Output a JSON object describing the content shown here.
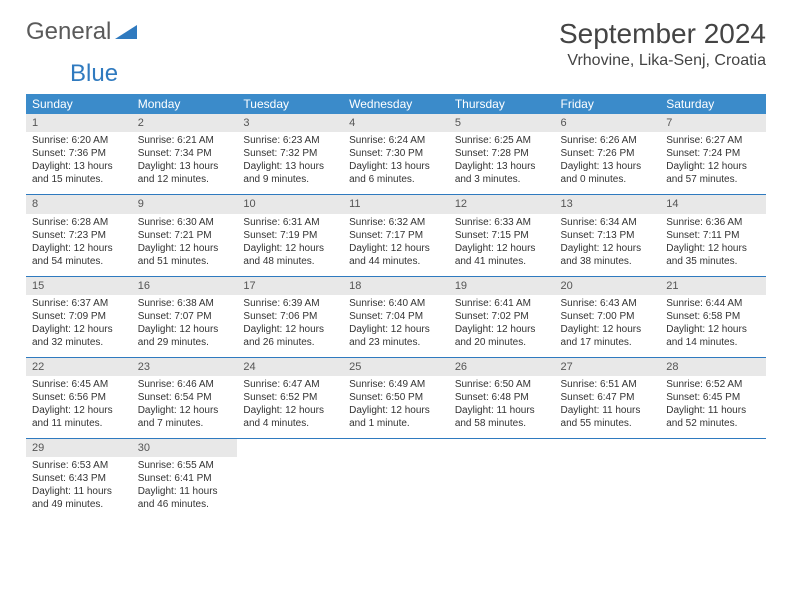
{
  "brand": {
    "part1": "General",
    "part2": "Blue"
  },
  "title": "September 2024",
  "location": "Vrhovine, Lika-Senj, Croatia",
  "colors": {
    "header_bg": "#3b8bca",
    "header_fg": "#ffffff",
    "daynum_bg": "#e8e8e8",
    "rule": "#2f7abf",
    "text": "#333333",
    "brand_gray": "#5a5a5a",
    "brand_blue": "#2f7abf"
  },
  "weekdays": [
    "Sunday",
    "Monday",
    "Tuesday",
    "Wednesday",
    "Thursday",
    "Friday",
    "Saturday"
  ],
  "weeks": [
    [
      {
        "n": "1",
        "sr": "6:20 AM",
        "ss": "7:36 PM",
        "dl": "13 hours and 15 minutes."
      },
      {
        "n": "2",
        "sr": "6:21 AM",
        "ss": "7:34 PM",
        "dl": "13 hours and 12 minutes."
      },
      {
        "n": "3",
        "sr": "6:23 AM",
        "ss": "7:32 PM",
        "dl": "13 hours and 9 minutes."
      },
      {
        "n": "4",
        "sr": "6:24 AM",
        "ss": "7:30 PM",
        "dl": "13 hours and 6 minutes."
      },
      {
        "n": "5",
        "sr": "6:25 AM",
        "ss": "7:28 PM",
        "dl": "13 hours and 3 minutes."
      },
      {
        "n": "6",
        "sr": "6:26 AM",
        "ss": "7:26 PM",
        "dl": "13 hours and 0 minutes."
      },
      {
        "n": "7",
        "sr": "6:27 AM",
        "ss": "7:24 PM",
        "dl": "12 hours and 57 minutes."
      }
    ],
    [
      {
        "n": "8",
        "sr": "6:28 AM",
        "ss": "7:23 PM",
        "dl": "12 hours and 54 minutes."
      },
      {
        "n": "9",
        "sr": "6:30 AM",
        "ss": "7:21 PM",
        "dl": "12 hours and 51 minutes."
      },
      {
        "n": "10",
        "sr": "6:31 AM",
        "ss": "7:19 PM",
        "dl": "12 hours and 48 minutes."
      },
      {
        "n": "11",
        "sr": "6:32 AM",
        "ss": "7:17 PM",
        "dl": "12 hours and 44 minutes."
      },
      {
        "n": "12",
        "sr": "6:33 AM",
        "ss": "7:15 PM",
        "dl": "12 hours and 41 minutes."
      },
      {
        "n": "13",
        "sr": "6:34 AM",
        "ss": "7:13 PM",
        "dl": "12 hours and 38 minutes."
      },
      {
        "n": "14",
        "sr": "6:36 AM",
        "ss": "7:11 PM",
        "dl": "12 hours and 35 minutes."
      }
    ],
    [
      {
        "n": "15",
        "sr": "6:37 AM",
        "ss": "7:09 PM",
        "dl": "12 hours and 32 minutes."
      },
      {
        "n": "16",
        "sr": "6:38 AM",
        "ss": "7:07 PM",
        "dl": "12 hours and 29 minutes."
      },
      {
        "n": "17",
        "sr": "6:39 AM",
        "ss": "7:06 PM",
        "dl": "12 hours and 26 minutes."
      },
      {
        "n": "18",
        "sr": "6:40 AM",
        "ss": "7:04 PM",
        "dl": "12 hours and 23 minutes."
      },
      {
        "n": "19",
        "sr": "6:41 AM",
        "ss": "7:02 PM",
        "dl": "12 hours and 20 minutes."
      },
      {
        "n": "20",
        "sr": "6:43 AM",
        "ss": "7:00 PM",
        "dl": "12 hours and 17 minutes."
      },
      {
        "n": "21",
        "sr": "6:44 AM",
        "ss": "6:58 PM",
        "dl": "12 hours and 14 minutes."
      }
    ],
    [
      {
        "n": "22",
        "sr": "6:45 AM",
        "ss": "6:56 PM",
        "dl": "12 hours and 11 minutes."
      },
      {
        "n": "23",
        "sr": "6:46 AM",
        "ss": "6:54 PM",
        "dl": "12 hours and 7 minutes."
      },
      {
        "n": "24",
        "sr": "6:47 AM",
        "ss": "6:52 PM",
        "dl": "12 hours and 4 minutes."
      },
      {
        "n": "25",
        "sr": "6:49 AM",
        "ss": "6:50 PM",
        "dl": "12 hours and 1 minute."
      },
      {
        "n": "26",
        "sr": "6:50 AM",
        "ss": "6:48 PM",
        "dl": "11 hours and 58 minutes."
      },
      {
        "n": "27",
        "sr": "6:51 AM",
        "ss": "6:47 PM",
        "dl": "11 hours and 55 minutes."
      },
      {
        "n": "28",
        "sr": "6:52 AM",
        "ss": "6:45 PM",
        "dl": "11 hours and 52 minutes."
      }
    ],
    [
      {
        "n": "29",
        "sr": "6:53 AM",
        "ss": "6:43 PM",
        "dl": "11 hours and 49 minutes."
      },
      {
        "n": "30",
        "sr": "6:55 AM",
        "ss": "6:41 PM",
        "dl": "11 hours and 46 minutes."
      },
      null,
      null,
      null,
      null,
      null
    ]
  ],
  "labels": {
    "sunrise": "Sunrise: ",
    "sunset": "Sunset: ",
    "daylight": "Daylight: "
  }
}
